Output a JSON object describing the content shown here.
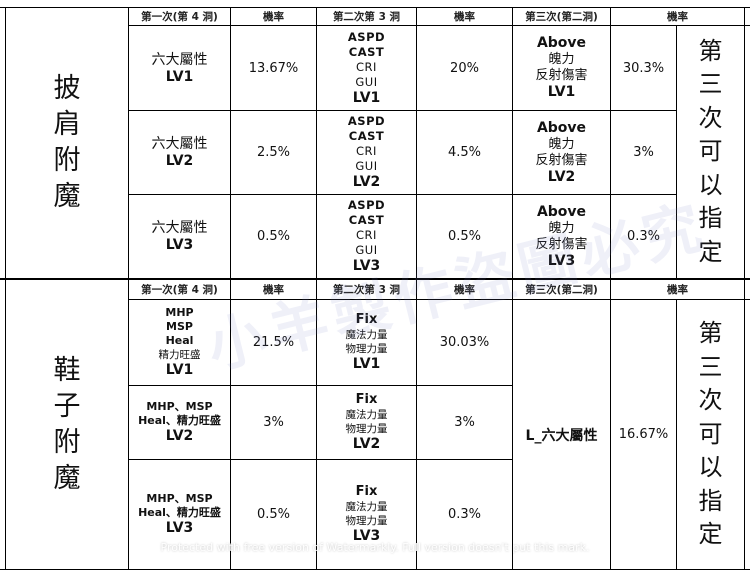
{
  "headers": {
    "first": "第一次(第 4 洞)",
    "rate": "機率",
    "second": "第二次第 3 洞",
    "third": "第三次(第二洞)"
  },
  "cloak": {
    "title": [
      "披",
      "肩",
      "附",
      "魔"
    ],
    "rows": [
      {
        "first": [
          "六大屬性",
          "LV1"
        ],
        "first_rate": "13.67%",
        "second": [
          "ASPD",
          "CAST",
          "CRI",
          "GUI",
          "LV1"
        ],
        "second_rate": "20%",
        "third": [
          "Above",
          "魄力",
          "反射傷害",
          "LV1"
        ],
        "third_rate": "30.3%"
      },
      {
        "first": [
          "六大屬性",
          "LV2"
        ],
        "first_rate": "2.5%",
        "second": [
          "ASPD",
          "CAST",
          "CRI",
          "GUI",
          "LV2"
        ],
        "second_rate": "4.5%",
        "third": [
          "Above",
          "魄力",
          "反射傷害",
          "LV2"
        ],
        "third_rate": "3%"
      },
      {
        "first": [
          "六大屬性",
          "LV3"
        ],
        "first_rate": "0.5%",
        "second": [
          "ASPD",
          "CAST",
          "CRI",
          "GUI",
          "LV3"
        ],
        "second_rate": "0.5%",
        "third": [
          "Above",
          "魄力",
          "反射傷害",
          "LV3"
        ],
        "third_rate": "0.3%"
      }
    ],
    "note": [
      "第",
      "三",
      "次",
      "可",
      "以",
      "指",
      "定"
    ]
  },
  "shoe": {
    "title": [
      "鞋",
      "子",
      "附",
      "魔"
    ],
    "rows": [
      {
        "first": [
          "MHP",
          "MSP",
          "Heal",
          "精力旺盛",
          "LV1"
        ],
        "first_rate": "21.5%",
        "second": [
          "Fix",
          "魔法力量",
          "物理力量",
          "LV1"
        ],
        "second_rate": "30.03%"
      },
      {
        "first": [
          "MHP、MSP",
          "Heal、精力旺盛",
          "LV2"
        ],
        "first_rate": "3%",
        "second": [
          "Fix",
          "魔法力量",
          "物理力量",
          "LV2"
        ],
        "second_rate": "3%"
      },
      {
        "first": [
          "MHP、MSP",
          "Heal、精力旺盛",
          "LV3"
        ],
        "first_rate": "0.5%",
        "second": [
          "Fix",
          "魔法力量",
          "物理力量",
          "LV3"
        ],
        "second_rate": "0.3%"
      }
    ],
    "third": "L_六大屬性",
    "third_rate": "16.67%",
    "note": [
      "第",
      "三",
      "次",
      "可",
      "以",
      "指",
      "定"
    ]
  },
  "watermark": "小羊製作盜圖必究",
  "promo": "Protected with free version of Watermarkly. Full version doesn't put this mark."
}
